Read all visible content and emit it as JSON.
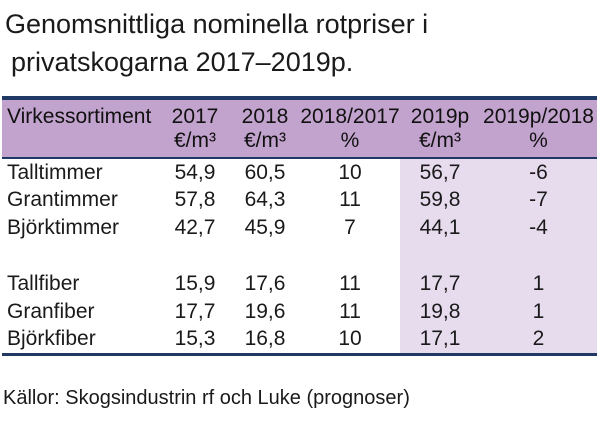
{
  "title": {
    "line1": "Genomsnittliga nominella rotpriser i",
    "line2": "privatskogarna 2017–2019p."
  },
  "colors": {
    "header_bg": "#c2a3cd",
    "highlight_bg": "#e6dcee",
    "table_border": "#1f3864",
    "text": "#1a1a1a"
  },
  "table": {
    "columns": [
      {
        "label": "Virkessortiment",
        "unit": ""
      },
      {
        "label": "2017",
        "unit": "€/m³"
      },
      {
        "label": "2018",
        "unit": "€/m³"
      },
      {
        "label": "2018/2017",
        "unit": "%"
      },
      {
        "label": "2019p",
        "unit": "€/m³"
      },
      {
        "label": "2019p/2018",
        "unit": "%"
      }
    ],
    "rows": [
      {
        "name": "Talltimmer",
        "y2017": "54,9",
        "y2018": "60,5",
        "chg_2018_2017": "10",
        "y2019p": "56,7",
        "chg_2019p_2018": "-6"
      },
      {
        "name": "Grantimmer",
        "y2017": "57,8",
        "y2018": "64,3",
        "chg_2018_2017": "11",
        "y2019p": "59,8",
        "chg_2019p_2018": "-7"
      },
      {
        "name": "Björktimmer",
        "y2017": "42,7",
        "y2018": "45,9",
        "chg_2018_2017": "7",
        "y2019p": "44,1",
        "chg_2019p_2018": "-4"
      },
      {
        "name": "",
        "y2017": "",
        "y2018": "",
        "chg_2018_2017": "",
        "y2019p": "",
        "chg_2019p_2018": ""
      },
      {
        "name": "Tallfiber",
        "y2017": "15,9",
        "y2018": "17,6",
        "chg_2018_2017": "11",
        "y2019p": "17,7",
        "chg_2019p_2018": "1"
      },
      {
        "name": "Granfiber",
        "y2017": "17,7",
        "y2018": "19,6",
        "chg_2018_2017": "11",
        "y2019p": "19,8",
        "chg_2019p_2018": "1"
      },
      {
        "name": "Björkfiber",
        "y2017": "15,3",
        "y2018": "16,8",
        "chg_2018_2017": "10",
        "y2019p": "17,1",
        "chg_2019p_2018": "2"
      }
    ]
  },
  "footer": {
    "source": "Källor: Skogsindustrin rf och Luke (prognoser)"
  }
}
